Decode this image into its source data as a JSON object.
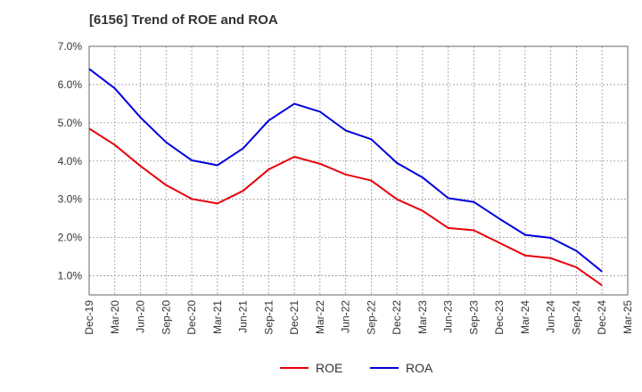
{
  "title": "[6156]  Trend of ROE and ROA",
  "chart_data": {
    "type": "line",
    "title": "[6156]  Trend of ROE and ROA",
    "x": [
      "Dec-19",
      "Mar-20",
      "Jun-20",
      "Sep-20",
      "Dec-20",
      "Mar-21",
      "Jun-21",
      "Sep-21",
      "Dec-21",
      "Mar-22",
      "Jun-22",
      "Sep-22",
      "Dec-22",
      "Mar-23",
      "Jun-23",
      "Sep-23",
      "Dec-23",
      "Mar-24",
      "Jun-24",
      "Sep-24",
      "Dec-24",
      "Mar-25"
    ],
    "y_ticks": [
      "1.0%",
      "2.0%",
      "3.0%",
      "4.0%",
      "5.0%",
      "6.0%",
      "7.0%"
    ],
    "ylim": [
      0.5,
      7.0
    ],
    "y_unit": "%",
    "grid": true,
    "legend": "bottom-center",
    "series": [
      {
        "name": "ROE",
        "color": "#e8000b",
        "values": [
          4.85,
          4.42,
          3.87,
          3.37,
          3.01,
          2.89,
          3.22,
          3.78,
          4.11,
          3.93,
          3.65,
          3.49,
          3.0,
          2.7,
          2.25,
          2.19,
          1.86,
          1.53,
          1.46,
          1.22,
          0.75,
          null
        ]
      },
      {
        "name": "ROA",
        "color": "#0000dd",
        "values": [
          6.41,
          5.9,
          5.14,
          4.49,
          4.02,
          3.89,
          4.33,
          5.06,
          5.5,
          5.29,
          4.8,
          4.57,
          3.95,
          3.57,
          3.03,
          2.93,
          2.49,
          2.07,
          1.99,
          1.65,
          1.11,
          null
        ]
      }
    ]
  }
}
